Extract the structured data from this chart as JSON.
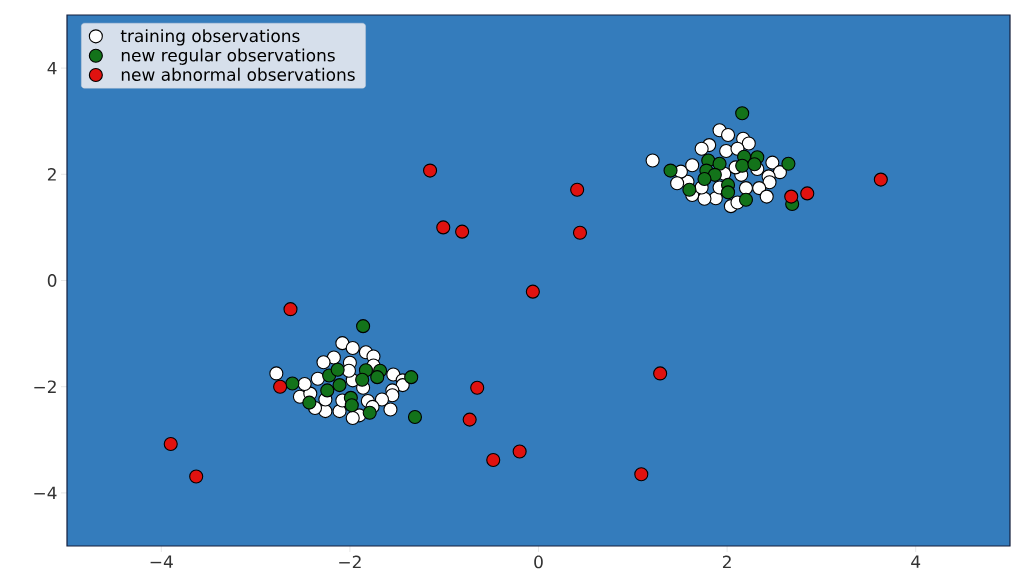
{
  "chart_data": {
    "type": "scatter",
    "xlim": [
      -5,
      5
    ],
    "ylim": [
      -5,
      5
    ],
    "xticks": [
      {
        "value": -4,
        "label": "−4"
      },
      {
        "value": -2,
        "label": "−2"
      },
      0,
      2,
      4
    ],
    "yticks": [
      {
        "value": -4,
        "label": "−4"
      },
      {
        "value": -2,
        "label": "−2"
      },
      0,
      2,
      4
    ],
    "grid": false,
    "legend": "top left",
    "series": [
      {
        "name": "training observations",
        "color": "#ffffff",
        "x": [
          -2.78,
          -2.08,
          -1.97,
          -1.83,
          -1.75,
          -2.17,
          -2.28,
          -2.0,
          -1.75,
          -1.54,
          -1.44,
          -1.44,
          -1.55,
          -1.55,
          -1.66,
          -1.57,
          -1.81,
          -1.76,
          -1.9,
          -1.97,
          -2.11,
          -2.26,
          -2.37,
          -2.26,
          -2.53,
          -2.42,
          -2.48,
          -2.34,
          -1.97,
          -1.86,
          -2.08,
          -2.01,
          1.21,
          1.92,
          2.01,
          2.17,
          2.23,
          1.81,
          1.73,
          1.99,
          2.11,
          2.48,
          2.56,
          2.44,
          2.45,
          2.34,
          2.42,
          2.2,
          2.04,
          2.11,
          1.88,
          1.76,
          1.63,
          1.73,
          1.58,
          1.51,
          1.47,
          1.63,
          2.15,
          1.97,
          1.92,
          2.32,
          2.09
        ],
        "values": [
          -1.75,
          -1.18,
          -1.27,
          -1.35,
          -1.43,
          -1.45,
          -1.54,
          -1.55,
          -1.6,
          -1.77,
          -1.88,
          -1.97,
          -2.07,
          -2.16,
          -2.24,
          -2.43,
          -2.27,
          -2.38,
          -2.54,
          -2.59,
          -2.46,
          -2.46,
          -2.4,
          -2.24,
          -2.19,
          -2.13,
          -1.95,
          -1.85,
          -1.88,
          -2.02,
          -2.26,
          -1.7,
          2.26,
          2.83,
          2.74,
          2.67,
          2.58,
          2.55,
          2.48,
          2.44,
          2.48,
          2.22,
          2.04,
          1.96,
          1.85,
          1.74,
          1.58,
          1.74,
          1.4,
          1.47,
          1.55,
          1.54,
          1.61,
          1.75,
          1.86,
          2.05,
          1.83,
          2.17,
          1.99,
          2.01,
          1.75,
          2.1,
          2.13
        ]
      },
      {
        "name": "new regular observations",
        "color": "#13731a",
        "x": [
          -1.86,
          -2.61,
          -1.35,
          -1.31,
          -1.79,
          -2.43,
          -1.99,
          -1.98,
          -2.22,
          -2.24,
          -2.13,
          -1.83,
          -1.87,
          -1.68,
          -1.71,
          -2.11,
          2.16,
          1.4,
          2.65,
          2.69,
          2.2,
          1.6,
          1.8,
          1.92,
          1.78,
          1.87,
          1.76,
          2.01,
          2.01,
          2.18,
          2.16,
          2.32,
          2.29
        ],
        "values": [
          -0.86,
          -1.94,
          -1.82,
          -2.57,
          -2.49,
          -2.3,
          -2.21,
          -2.35,
          -1.79,
          -2.07,
          -1.68,
          -1.69,
          -1.87,
          -1.7,
          -1.82,
          -1.97,
          3.15,
          2.07,
          2.2,
          1.44,
          1.52,
          1.71,
          2.26,
          2.2,
          2.07,
          1.99,
          1.91,
          1.8,
          1.66,
          2.33,
          2.16,
          2.32,
          2.19
        ]
      },
      {
        "name": "new abnormal observations",
        "color": "#e0120f",
        "x": [
          -1.15,
          -1.01,
          -0.81,
          0.41,
          0.44,
          2.68,
          2.85,
          3.63,
          -0.06,
          -2.63,
          -2.74,
          -3.9,
          -3.63,
          -0.65,
          -0.73,
          -0.48,
          -0.2,
          1.29,
          1.09
        ],
        "values": [
          2.07,
          1.0,
          0.92,
          1.71,
          0.9,
          1.58,
          1.64,
          1.9,
          -0.21,
          -0.54,
          -2.0,
          -3.08,
          -3.69,
          -2.02,
          -2.62,
          -3.38,
          -3.22,
          -1.75,
          -3.65
        ]
      }
    ]
  }
}
